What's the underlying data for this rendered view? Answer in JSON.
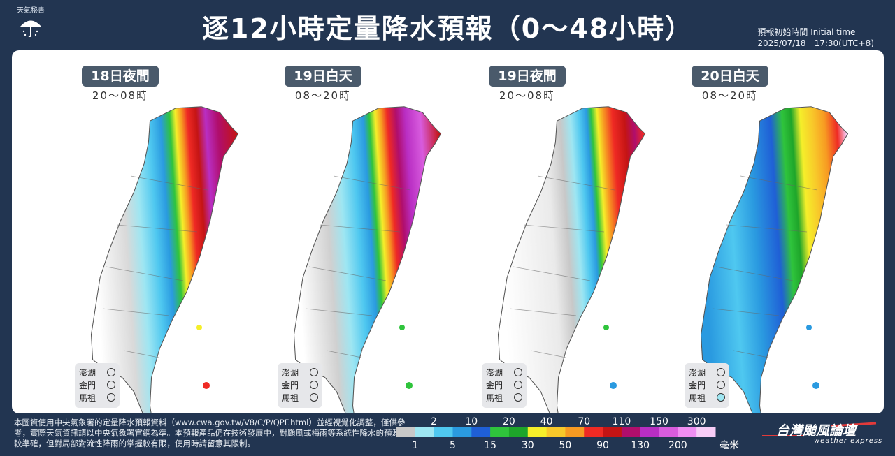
{
  "brand": {
    "text": "天氣秘書",
    "icon": "umbrella-icon"
  },
  "title": "逐12小時定量降水預報（0～48小時）",
  "init_time": {
    "label": "預報初始時間 Initial time",
    "value": "2025/07/18　17:30(UTC+8)"
  },
  "maps": [
    {
      "label": "18日夜間",
      "time": "20～08時",
      "islands": {
        "penghu": "澎湖",
        "kinmen": "金門",
        "matsu": "馬祖"
      },
      "matsu_color": ""
    },
    {
      "label": "19日白天",
      "time": "08～20時",
      "islands": {
        "penghu": "澎湖",
        "kinmen": "金門",
        "matsu": "馬祖"
      },
      "matsu_color": ""
    },
    {
      "label": "19日夜間",
      "time": "20～08時",
      "islands": {
        "penghu": "澎湖",
        "kinmen": "金門",
        "matsu": "馬祖"
      },
      "matsu_color": ""
    },
    {
      "label": "20日白天",
      "time": "08～20時",
      "islands": {
        "penghu": "澎湖",
        "kinmen": "金門",
        "matsu": "馬祖"
      },
      "matsu_color": "#9ee6f2"
    }
  ],
  "disclaimer": "本圖資使用中央氣象署的定量降水預報資料（www.cwa.gov.tw/V8/C/P/QPF.html）並經視覺化調整，僅供參考，實際天氣資訊請以中央氣象署官網為準。本預報產品仍在技術發展中，對颱風或梅雨等系統性降水的預測較準確，但對局部對流性降雨的掌握較有限，使用時請留意其限制。",
  "legend": {
    "upper_labels": [
      "2",
      "10",
      "20",
      "40",
      "70",
      "110",
      "150",
      "300"
    ],
    "lower_labels": [
      "1",
      "5",
      "15",
      "30",
      "50",
      "90",
      "130",
      "200"
    ],
    "unit": "毫米",
    "colors": [
      "#c8c8c8",
      "#9ee6f2",
      "#4fc8f0",
      "#2a9ae0",
      "#1f5fd6",
      "#2fc43c",
      "#1ea52a",
      "#f5ef2a",
      "#f8c82a",
      "#f79a22",
      "#ef2a24",
      "#c41414",
      "#b00e6c",
      "#b92ec3",
      "#d85cde",
      "#ef8ef2",
      "#f8cdf7"
    ]
  },
  "logo": {
    "main": "台灣颱風論壇",
    "sub": "weather express"
  }
}
